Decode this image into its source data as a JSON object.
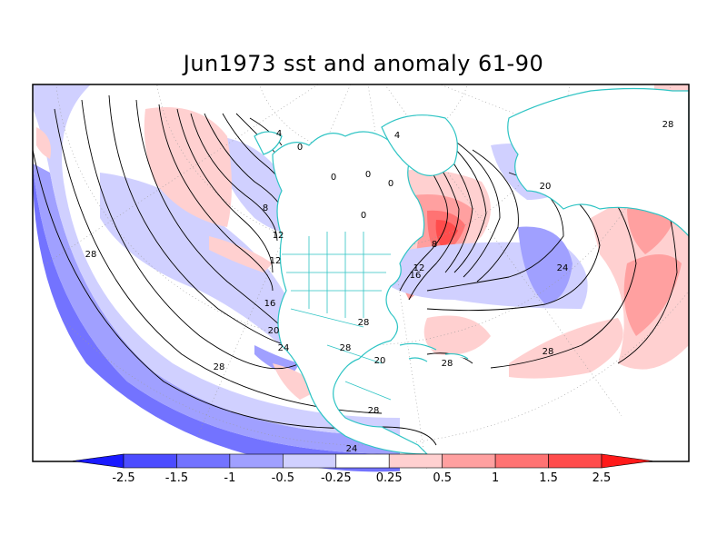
{
  "title": "Jun1973 sst and anomaly 61-90",
  "colors": {
    "coast": "#2ec4c4",
    "contour": "#000000",
    "frame": "#000000",
    "scale": [
      "#1a1aff",
      "#4c4cff",
      "#7373ff",
      "#a0a0ff",
      "#d0d0ff",
      "#ffffff",
      "#ffd0d0",
      "#ffa0a0",
      "#ff7373",
      "#ff4c4c",
      "#ff1a1a"
    ]
  },
  "colorbar": {
    "ticks": [
      "-2.5",
      "-1.5",
      "-1",
      "-0.5",
      "-0.25",
      "0.25",
      "0.5",
      "1",
      "1.5",
      "2.5"
    ]
  },
  "contour_labels": [
    {
      "text": "28"
    },
    {
      "text": "28"
    },
    {
      "text": "28"
    },
    {
      "text": "28"
    },
    {
      "text": "28"
    },
    {
      "text": "28"
    },
    {
      "text": "28"
    },
    {
      "text": "28"
    },
    {
      "text": "24"
    },
    {
      "text": "24"
    },
    {
      "text": "24"
    },
    {
      "text": "20"
    },
    {
      "text": "20"
    },
    {
      "text": "20"
    },
    {
      "text": "16"
    },
    {
      "text": "16"
    },
    {
      "text": "12"
    },
    {
      "text": "12"
    },
    {
      "text": "12"
    },
    {
      "text": "8"
    },
    {
      "text": "8"
    },
    {
      "text": "4"
    },
    {
      "text": "4"
    },
    {
      "text": "0"
    },
    {
      "text": "0"
    },
    {
      "text": "0"
    },
    {
      "text": "0"
    },
    {
      "text": "0"
    }
  ]
}
